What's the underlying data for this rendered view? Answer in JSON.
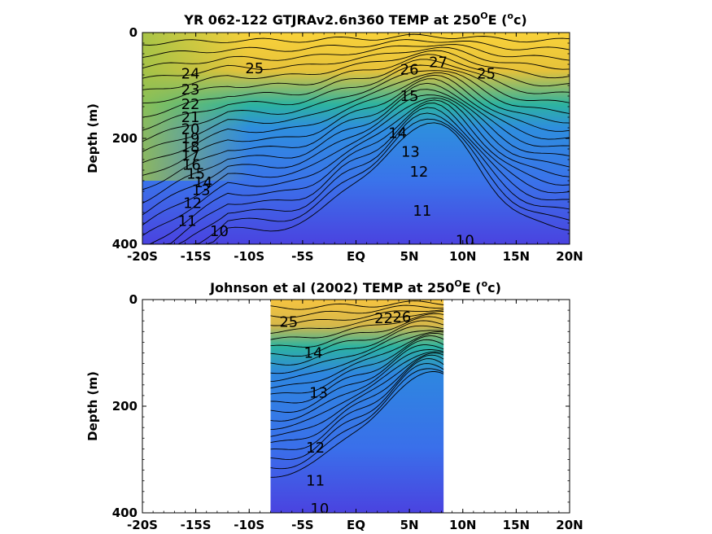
{
  "chart_data": [
    {
      "type": "contour",
      "title": "YR 062-122 GTJRAv2.6n360 TEMP at 250",
      "title_superscript": "O",
      "title_suffix": "E (",
      "title_unit_sup": "o",
      "title_unit": "c)",
      "ylabel": "Depth (m)",
      "xlim": [
        -20,
        20
      ],
      "ylim": [
        0,
        400
      ],
      "y_reversed": true,
      "x_ticks": [
        -20,
        -15,
        -10,
        -5,
        0,
        5,
        10,
        15,
        20
      ],
      "x_tick_labels": [
        "-20S",
        "-15S",
        "-10S",
        "-5S",
        "EQ",
        "5N",
        "10N",
        "15N",
        "20N"
      ],
      "y_ticks": [
        0,
        200,
        400
      ],
      "y_tick_labels": [
        "0",
        "200",
        "400"
      ],
      "data_extent": [
        -20,
        20
      ],
      "contour_labels": [
        {
          "text": "24",
          "x": -15.5,
          "y": 78
        },
        {
          "text": "25",
          "x": -9.5,
          "y": 68
        },
        {
          "text": "23",
          "x": -15.5,
          "y": 108
        },
        {
          "text": "22",
          "x": -15.5,
          "y": 135
        },
        {
          "text": "21",
          "x": -15.5,
          "y": 160
        },
        {
          "text": "20",
          "x": -15.5,
          "y": 182
        },
        {
          "text": "19",
          "x": -15.5,
          "y": 200
        },
        {
          "text": "18",
          "x": -15.5,
          "y": 216
        },
        {
          "text": "17",
          "x": -15.5,
          "y": 232
        },
        {
          "text": "16",
          "x": -15.4,
          "y": 250
        },
        {
          "text": "15",
          "x": -15.0,
          "y": 267
        },
        {
          "text": "14",
          "x": -14.3,
          "y": 283
        },
        {
          "text": "13",
          "x": -14.5,
          "y": 298
        },
        {
          "text": "12",
          "x": -15.3,
          "y": 322
        },
        {
          "text": "11",
          "x": -15.8,
          "y": 356
        },
        {
          "text": "10",
          "x": -12.8,
          "y": 375
        },
        {
          "text": "26",
          "x": 5.0,
          "y": 70
        },
        {
          "text": "27",
          "x": 7.7,
          "y": 56
        },
        {
          "text": "25",
          "x": 12.2,
          "y": 78
        },
        {
          "text": "15",
          "x": 5.0,
          "y": 120
        },
        {
          "text": "14",
          "x": 3.9,
          "y": 190
        },
        {
          "text": "13",
          "x": 5.1,
          "y": 225
        },
        {
          "text": "12",
          "x": 5.9,
          "y": 263
        },
        {
          "text": "11",
          "x": 6.2,
          "y": 337
        },
        {
          "text": "10",
          "x": 10.2,
          "y": 393
        }
      ]
    },
    {
      "type": "contour",
      "title": "Johnson et al (2002) TEMP at 250",
      "title_superscript": "O",
      "title_suffix": "E (",
      "title_unit_sup": "o",
      "title_unit": "c)",
      "ylabel": "Depth (m)",
      "xlim": [
        -20,
        20
      ],
      "ylim": [
        0,
        400
      ],
      "y_reversed": true,
      "x_ticks": [
        -20,
        -15,
        -10,
        -5,
        0,
        5,
        10,
        15,
        20
      ],
      "x_tick_labels": [
        "-20S",
        "-15S",
        "-10S",
        "-5S",
        "EQ",
        "5N",
        "10N",
        "15N",
        "20N"
      ],
      "y_ticks": [
        0,
        200,
        400
      ],
      "y_tick_labels": [
        "0",
        "200",
        "400"
      ],
      "data_extent": [
        -8,
        8.2
      ],
      "contour_labels": [
        {
          "text": "25",
          "x": -6.3,
          "y": 42
        },
        {
          "text": "22",
          "x": 2.6,
          "y": 35
        },
        {
          "text": "26",
          "x": 4.3,
          "y": 33
        },
        {
          "text": "14",
          "x": -4.0,
          "y": 100
        },
        {
          "text": "13",
          "x": -3.5,
          "y": 175
        },
        {
          "text": "12",
          "x": -3.8,
          "y": 278
        },
        {
          "text": "11",
          "x": -3.8,
          "y": 340
        },
        {
          "text": "10",
          "x": -3.4,
          "y": 392
        }
      ]
    }
  ],
  "colors": {
    "warm": "#f9d23a",
    "mid": "#2db3a0",
    "cool": "#3d6ce8",
    "deep": "#4a43e0"
  }
}
